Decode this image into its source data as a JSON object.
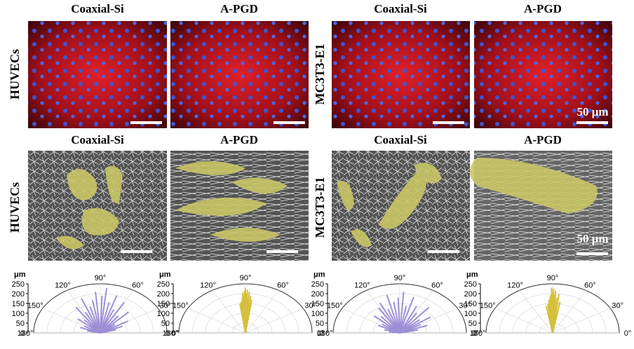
{
  "figure": {
    "top_row": {
      "titles": [
        "Coaxial-Si",
        "A-PGD",
        "Coaxial-Si",
        "A-PGD"
      ],
      "row_labels": [
        "HUVECs",
        "MC3T3-E1"
      ],
      "scale_label": "50 μm"
    },
    "bottom_row": {
      "titles": [
        "Coaxial-Si",
        "A-PGD",
        "Coaxial-Si",
        "A-PGD"
      ],
      "row_labels": [
        "HUVECs",
        "MC3T3-E1"
      ],
      "scale_label": "50 μm"
    }
  },
  "chart_data": [
    {
      "type": "polar",
      "r_label": "μm",
      "rlim": [
        0,
        250
      ],
      "rticks": [
        0,
        50,
        100,
        150,
        200,
        250
      ],
      "thetaticks": [
        {
          "value": 0,
          "label": "0°"
        },
        {
          "value": 30,
          "label": "30°"
        },
        {
          "value": 60,
          "label": "60°"
        },
        {
          "value": 90,
          "label": "90°"
        },
        {
          "value": 120,
          "label": "120°"
        },
        {
          "value": 150,
          "label": "150°"
        },
        {
          "value": 180,
          "label": "180°"
        }
      ],
      "color": "#9d8fd6",
      "angles": [
        15,
        22,
        30,
        38,
        45,
        52,
        60,
        67,
        72,
        78,
        84,
        88,
        95,
        100,
        106,
        112,
        118,
        125,
        132,
        140,
        150,
        160,
        168
      ],
      "values": [
        60,
        90,
        120,
        70,
        150,
        110,
        180,
        130,
        200,
        160,
        230,
        190,
        210,
        170,
        140,
        190,
        120,
        160,
        90,
        110,
        70,
        80,
        50
      ]
    },
    {
      "type": "polar",
      "r_label": "μm",
      "rlim": [
        0,
        250
      ],
      "rticks": [
        0,
        50,
        100,
        150,
        200,
        250
      ],
      "thetaticks": [
        {
          "value": 0,
          "label": "0°"
        },
        {
          "value": 30,
          "label": "30°"
        },
        {
          "value": 60,
          "label": "60°"
        },
        {
          "value": 90,
          "label": "90°"
        },
        {
          "value": 120,
          "label": "120°"
        },
        {
          "value": 150,
          "label": "150°"
        },
        {
          "value": 180,
          "label": "180°"
        }
      ],
      "color": "#d4c03c",
      "angles": [
        82,
        84,
        86,
        87,
        88,
        89,
        90,
        91,
        92,
        93,
        94,
        96,
        98
      ],
      "values": [
        170,
        190,
        210,
        180,
        220,
        200,
        230,
        215,
        190,
        205,
        180,
        160,
        150
      ]
    },
    {
      "type": "polar",
      "r_label": "μm",
      "rlim": [
        0,
        250
      ],
      "rticks": [
        0,
        50,
        100,
        150,
        200,
        250
      ],
      "thetaticks": [
        {
          "value": 0,
          "label": "0°"
        },
        {
          "value": 30,
          "label": "30°"
        },
        {
          "value": 60,
          "label": "60°"
        },
        {
          "value": 90,
          "label": "90°"
        },
        {
          "value": 120,
          "label": "120°"
        },
        {
          "value": 150,
          "label": "150°"
        },
        {
          "value": 180,
          "label": "180°"
        }
      ],
      "color": "#9d8fd6",
      "angles": [
        12,
        20,
        28,
        35,
        42,
        50,
        58,
        65,
        74,
        80,
        86,
        92,
        98,
        104,
        110,
        116,
        122,
        130,
        138,
        146,
        155,
        164,
        172
      ],
      "values": [
        70,
        110,
        90,
        140,
        100,
        170,
        120,
        150,
        190,
        140,
        210,
        180,
        160,
        200,
        130,
        170,
        150,
        110,
        130,
        80,
        90,
        60,
        40
      ]
    },
    {
      "type": "polar",
      "r_label": "μm",
      "rlim": [
        0,
        250
      ],
      "rticks": [
        0,
        50,
        100,
        150,
        200,
        250
      ],
      "thetaticks": [
        {
          "value": 0,
          "label": "0°"
        },
        {
          "value": 30,
          "label": "30°"
        },
        {
          "value": 60,
          "label": "60°"
        },
        {
          "value": 90,
          "label": "90°"
        },
        {
          "value": 120,
          "label": "120°"
        },
        {
          "value": 150,
          "label": "150°"
        },
        {
          "value": 180,
          "label": "180°"
        }
      ],
      "color": "#d4c03c",
      "angles": [
        80,
        83,
        85,
        87,
        88,
        89,
        90,
        91,
        92,
        93,
        95,
        97,
        100
      ],
      "values": [
        160,
        200,
        180,
        215,
        190,
        225,
        205,
        230,
        195,
        185,
        170,
        150,
        140
      ]
    }
  ]
}
